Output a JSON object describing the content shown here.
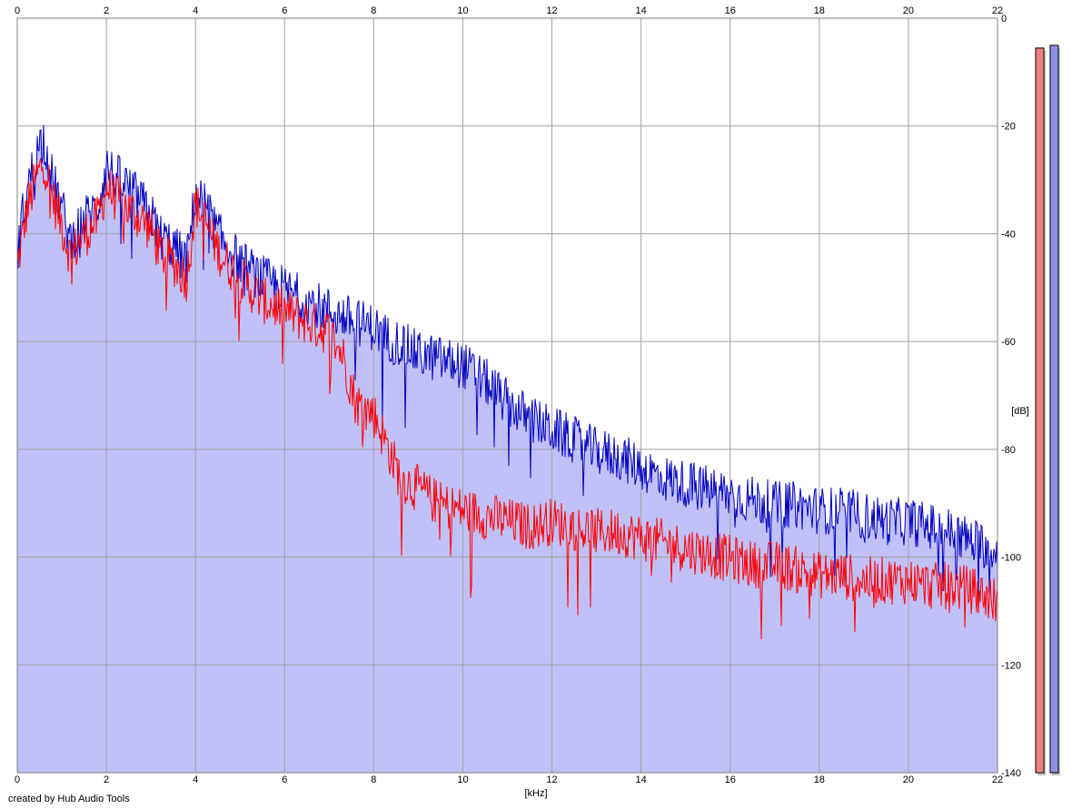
{
  "credit": "created by Hub Audio Tools",
  "colors": {
    "fill": "#c0c0f8",
    "left_line": "#ff0000",
    "right_line": "#0000c0",
    "grid": "#a0a0a0",
    "meter_left": "#f08080",
    "meter_right": "#9090e8"
  },
  "chart_data": {
    "type": "line",
    "xlabel": "[kHz]",
    "ylabel": "[dB]",
    "xlim": [
      0,
      22
    ],
    "ylim": [
      -140,
      0
    ],
    "xticks": [
      0,
      2,
      4,
      6,
      8,
      10,
      12,
      14,
      16,
      18,
      20,
      22
    ],
    "yticks": [
      0,
      -20,
      -40,
      -60,
      -80,
      -100,
      -120,
      -140
    ],
    "grid": true,
    "filled_area_under": "right",
    "series": [
      {
        "color": "#ff0000",
        "x": [
          0,
          0.2,
          0.4,
          0.5,
          0.6,
          0.8,
          1.0,
          1.2,
          1.4,
          1.6,
          1.8,
          2.0,
          2.2,
          2.5,
          2.8,
          3.0,
          3.2,
          3.5,
          3.8,
          4.0,
          4.2,
          4.4,
          4.6,
          5.0,
          5.5,
          6.0,
          6.5,
          7.0,
          7.3,
          7.6,
          8.0,
          8.3,
          8.6,
          9.0,
          9.5,
          10.0,
          10.5,
          11.0,
          11.5,
          12.0,
          12.5,
          13.0,
          13.5,
          14.0,
          14.5,
          15.0,
          15.5,
          16.0,
          16.5,
          17.0,
          17.5,
          18.0,
          18.5,
          19.0,
          19.5,
          20.0,
          20.5,
          21.0,
          21.5,
          22.0
        ],
        "y": [
          -45,
          -35,
          -29,
          -27,
          -25,
          -32,
          -37,
          -43,
          -40,
          -38,
          -36,
          -30,
          -32,
          -34,
          -36,
          -38,
          -42,
          -44,
          -47,
          -33,
          -36,
          -40,
          -43,
          -47,
          -51,
          -53,
          -55,
          -57,
          -61,
          -70,
          -72,
          -78,
          -84,
          -86,
          -89,
          -90,
          -91,
          -92,
          -93,
          -92,
          -93,
          -94,
          -94,
          -95,
          -96,
          -97,
          -98,
          -99,
          -100,
          -100,
          -101,
          -102,
          -102,
          -103,
          -103,
          -103,
          -104,
          -104,
          -105,
          -107
        ]
      },
      {
        "color": "#0000c0",
        "x": [
          0,
          0.2,
          0.4,
          0.5,
          0.6,
          0.8,
          1.0,
          1.2,
          1.4,
          1.6,
          1.8,
          2.0,
          2.2,
          2.5,
          2.8,
          3.0,
          3.2,
          3.5,
          3.8,
          4.0,
          4.2,
          4.4,
          4.6,
          5.0,
          5.5,
          6.0,
          6.5,
          7.0,
          7.3,
          7.6,
          8.0,
          8.3,
          8.6,
          9.0,
          9.5,
          10.0,
          10.5,
          11.0,
          11.5,
          12.0,
          12.5,
          13.0,
          13.5,
          14.0,
          14.5,
          15.0,
          15.5,
          16.0,
          16.5,
          17.0,
          17.5,
          18.0,
          18.5,
          19.0,
          19.5,
          20.0,
          20.5,
          21.0,
          21.5,
          22.0
        ],
        "y": [
          -42,
          -31,
          -25,
          -22,
          -21,
          -29,
          -34,
          -40,
          -37,
          -35,
          -34,
          -26,
          -28,
          -30,
          -33,
          -35,
          -39,
          -41,
          -44,
          -31,
          -33,
          -37,
          -40,
          -44,
          -47,
          -49,
          -51,
          -53,
          -54,
          -55,
          -56,
          -58,
          -59,
          -61,
          -62,
          -63,
          -66,
          -70,
          -73,
          -75,
          -77,
          -79,
          -80,
          -82,
          -84,
          -85,
          -86,
          -87,
          -88,
          -89,
          -89,
          -90,
          -90,
          -91,
          -92,
          -92,
          -93,
          -94,
          -96,
          -97
        ]
      }
    ],
    "level_meters": [
      {
        "color": "#f08080",
        "level_db": -1.5
      },
      {
        "color": "#9090e8",
        "level_db": -1.0
      }
    ]
  }
}
